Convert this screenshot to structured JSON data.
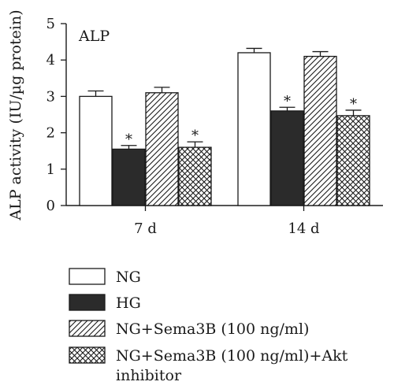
{
  "chart_data": {
    "type": "bar",
    "panel_label": "ALP",
    "ylabel": "ALP activity (IU/µg protein)",
    "xlabel": "",
    "ylim": [
      0,
      5
    ],
    "yticks": [
      "0",
      "1",
      "2",
      "3",
      "4",
      "5"
    ],
    "categories": [
      "7 d",
      "14 d"
    ],
    "series": [
      {
        "name": "NG",
        "values": [
          3.0,
          4.2
        ],
        "errors": [
          0.15,
          0.12
        ],
        "significant": [
          false,
          false
        ],
        "fill": "white"
      },
      {
        "name": "HG",
        "values": [
          1.55,
          2.6
        ],
        "errors": [
          0.1,
          0.1
        ],
        "significant": [
          true,
          true
        ],
        "fill": "solid"
      },
      {
        "name": "NG+Sema3B (100 ng/ml)",
        "values": [
          3.1,
          4.1
        ],
        "errors": [
          0.15,
          0.13
        ],
        "significant": [
          false,
          false
        ],
        "fill": "hatch"
      },
      {
        "name": "NG+Sema3B (100 ng/ml)+Akt inhibitor",
        "values": [
          1.6,
          2.47
        ],
        "errors": [
          0.15,
          0.15
        ],
        "significant": [
          true,
          true
        ],
        "fill": "crosshatch"
      }
    ],
    "significance_marker": "*",
    "legend_placement": "bottom",
    "grid": false
  },
  "legend": {
    "line1": [
      "NG",
      "HG",
      "NG+Sema3B (100 ng/ml)",
      "NG+Sema3B (100 ng/ml)+Akt"
    ],
    "line2": "inhibitor"
  },
  "colors": {
    "bar_dark": "#2b2b2b",
    "stroke": "#1a1a1a"
  }
}
